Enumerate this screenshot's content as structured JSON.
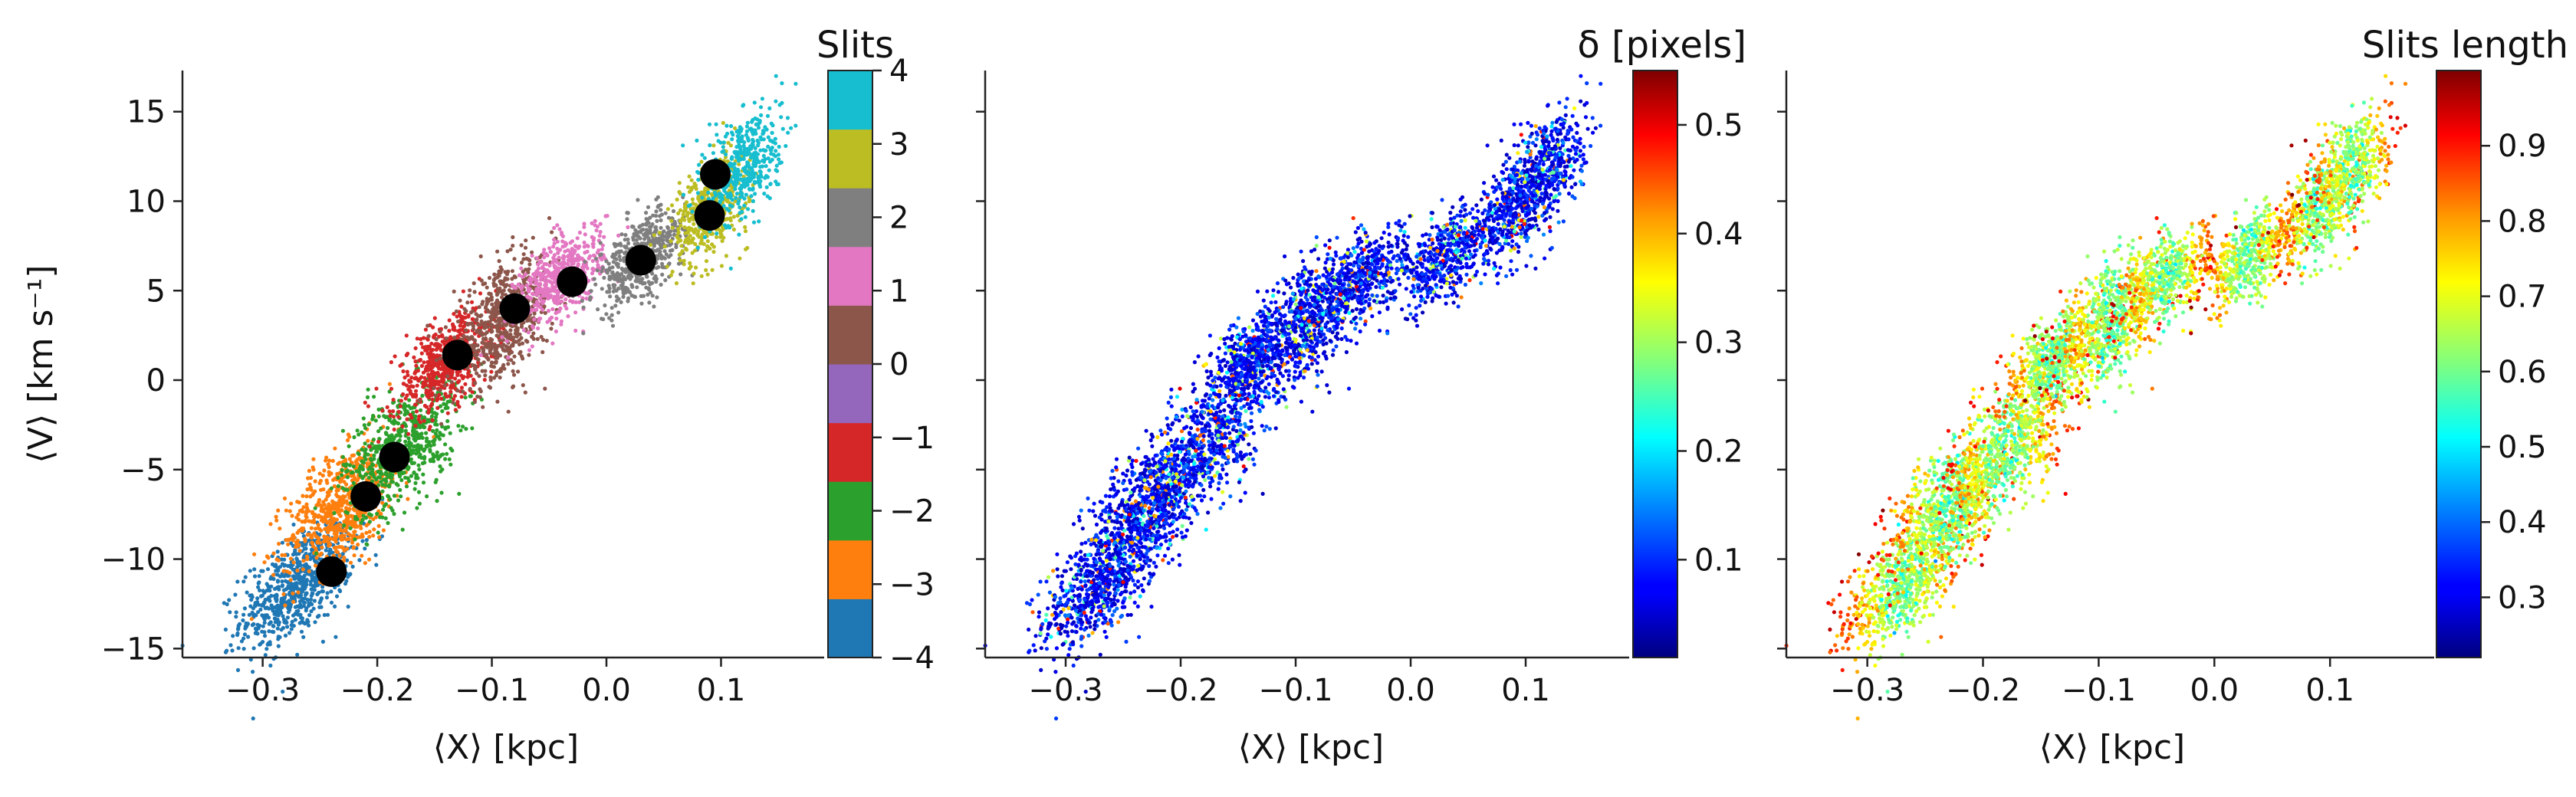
{
  "chart_data": [
    {
      "type": "scatter",
      "xlabel": "⟨X⟩ [kpc]",
      "ylabel": "⟨V⟩ [km s⁻¹]",
      "xlim": [
        -0.37,
        0.19
      ],
      "ylim": [
        -15.5,
        17.3
      ],
      "xticks": [
        -0.3,
        -0.2,
        -0.1,
        0.0,
        0.1
      ],
      "xtick_labels": [
        "−0.3",
        "−0.2",
        "−0.1",
        "0.0",
        "0.1"
      ],
      "yticks": [
        -15,
        -10,
        -5,
        0,
        5,
        10,
        15
      ],
      "ytick_labels": [
        "−15",
        "−10",
        "−5",
        "0",
        "5",
        "10",
        "15"
      ],
      "colorbar": {
        "title": "Slits",
        "kind": "discrete",
        "range": [
          -4,
          4
        ],
        "ticks": [
          -4,
          -3,
          -2,
          -1,
          0,
          1,
          2,
          3,
          4
        ],
        "tick_labels": [
          "−4",
          "−3",
          "−2",
          "−1",
          "0",
          "1",
          "2",
          "3",
          "4"
        ],
        "colors": [
          "#1f77b4",
          "#ff7f0e",
          "#2ca02c",
          "#d62728",
          "#9467bd",
          "#8c564b",
          "#e377c2",
          "#7f7f7f",
          "#bcbd22",
          "#17becf"
        ]
      },
      "series": [
        {
          "slit": -4,
          "color": "#1f77b4",
          "center": [
            -0.27,
            -11.5
          ],
          "spread": [
            0.045,
            1.4
          ],
          "count": 700
        },
        {
          "slit": -3,
          "color": "#ff7f0e",
          "center": [
            -0.23,
            -7.0
          ],
          "spread": [
            0.045,
            1.5
          ],
          "count": 700
        },
        {
          "slit": -2,
          "color": "#2ca02c",
          "center": [
            -0.18,
            -3.8
          ],
          "spread": [
            0.045,
            1.6
          ],
          "count": 650
        },
        {
          "slit": -1,
          "color": "#d62728",
          "center": [
            -0.14,
            1.0
          ],
          "spread": [
            0.04,
            1.2
          ],
          "count": 600
        },
        {
          "slit": 0,
          "color": "#8c564b",
          "center": [
            -0.09,
            3.2
          ],
          "spread": [
            0.04,
            1.5
          ],
          "count": 650
        },
        {
          "slit": 1,
          "color": "#e377c2",
          "center": [
            -0.04,
            5.8
          ],
          "spread": [
            0.035,
            1.1
          ],
          "count": 500
        },
        {
          "slit": 2,
          "color": "#7f7f7f",
          "center": [
            0.03,
            6.8
          ],
          "spread": [
            0.035,
            1.1
          ],
          "count": 500
        },
        {
          "slit": 3,
          "color": "#bcbd22",
          "center": [
            0.09,
            9.6
          ],
          "spread": [
            0.03,
            1.3
          ],
          "count": 450
        },
        {
          "slit": 4,
          "color": "#17becf",
          "center": [
            0.12,
            12.0
          ],
          "spread": [
            0.03,
            1.5
          ],
          "count": 450
        }
      ],
      "centroids": {
        "color": "#000000",
        "x": [
          -0.24,
          -0.21,
          -0.185,
          -0.13,
          -0.08,
          -0.03,
          0.03,
          0.09,
          0.095
        ],
        "y": [
          -10.7,
          -6.5,
          -4.3,
          1.4,
          4.0,
          5.5,
          6.7,
          9.2,
          11.5
        ]
      }
    },
    {
      "type": "scatter",
      "xlabel": "⟨X⟩ [kpc]",
      "xlim": [
        -0.37,
        0.19
      ],
      "ylim": [
        -15.5,
        17.3
      ],
      "xticks": [
        -0.3,
        -0.2,
        -0.1,
        0.0,
        0.1
      ],
      "xtick_labels": [
        "−0.3",
        "−0.2",
        "−0.1",
        "0.0",
        "0.1"
      ],
      "yticks": [
        -15,
        -10,
        -5,
        0,
        5,
        10,
        15
      ],
      "colorbar": {
        "title": "δ [pixels]",
        "colormap": "jet",
        "range": [
          0.01,
          0.55
        ],
        "ticks": [
          0.1,
          0.2,
          0.3,
          0.4,
          0.5
        ],
        "tick_labels": [
          "0.1",
          "0.2",
          "0.3",
          "0.4",
          "0.5"
        ]
      }
    },
    {
      "type": "scatter",
      "xlabel": "⟨X⟩ [kpc]",
      "xlim": [
        -0.37,
        0.19
      ],
      "ylim": [
        -15.5,
        17.3
      ],
      "xticks": [
        -0.3,
        -0.2,
        -0.1,
        0.0,
        0.1
      ],
      "xtick_labels": [
        "−0.3",
        "−0.2",
        "−0.1",
        "0.0",
        "0.1"
      ],
      "yticks": [
        -15,
        -10,
        -5,
        0,
        5,
        10,
        15
      ],
      "colorbar": {
        "title": "Slits length",
        "colormap": "jet",
        "range": [
          0.22,
          1.0
        ],
        "ticks": [
          0.3,
          0.4,
          0.5,
          0.6,
          0.7,
          0.8,
          0.9
        ],
        "tick_labels": [
          "0.3",
          "0.4",
          "0.5",
          "0.6",
          "0.7",
          "0.8",
          "0.9"
        ]
      }
    }
  ]
}
